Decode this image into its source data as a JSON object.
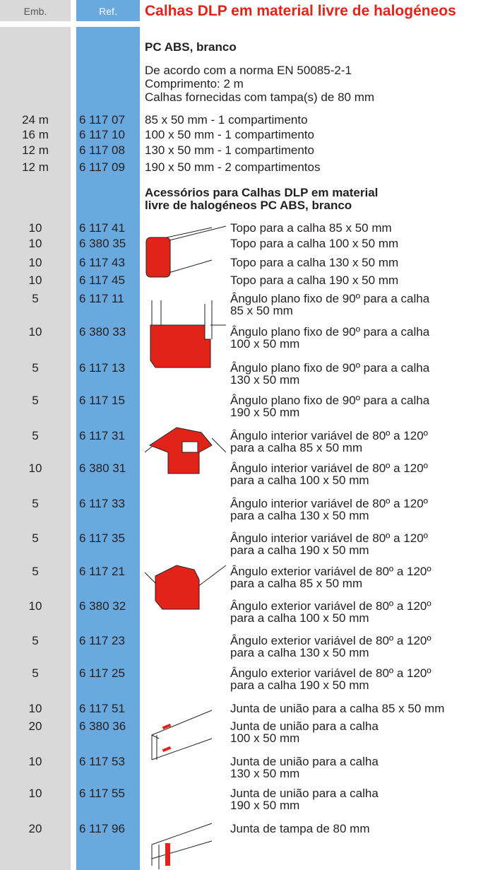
{
  "header": {
    "emb": "Emb.",
    "ref": "Ref.",
    "title": "Calhas DLP em material livre de halogéneos"
  },
  "section": {
    "title": "PC ABS, branco",
    "notes": [
      "De acordo com a norma EN 50085-2-1",
      "Comprimento: 2 m",
      "Calhas fornecidas com tampa(s) de 80 mm"
    ]
  },
  "products": [
    {
      "emb": "24 m",
      "ref": "6 117 07",
      "desc": "85 x 50 mm - 1 compartimento"
    },
    {
      "emb": "16 m",
      "ref": "6 117 10",
      "desc": "100 x 50 mm - 1 compartimento"
    },
    {
      "emb": "12 m",
      "ref": "6 117 08",
      "desc": "130 x 50 mm - 1 compartimento"
    },
    {
      "emb": "12 m",
      "ref": "6 117 09",
      "desc": "190 x 50 mm - 2 compartimentos"
    }
  ],
  "accessories": {
    "title": [
      "Acessórios para Calhas DLP em material",
      "livre de halogéneos PC ABS, branco"
    ],
    "items": [
      {
        "emb": "10",
        "ref": "6 117 41",
        "desc": [
          "Topo para a calha 85 x 50 mm"
        ]
      },
      {
        "emb": "10",
        "ref": "6 380 35",
        "desc": [
          "Topo para a calha 100 x 50 mm"
        ]
      },
      {
        "emb": "10",
        "ref": "6 117 43",
        "desc": [
          "Topo para a calha 130 x 50 mm"
        ]
      },
      {
        "emb": "10",
        "ref": "6 117 45",
        "desc": [
          "Topo para a calha  190 x 50 mm"
        ]
      },
      {
        "emb": "5",
        "ref": "6 117 11",
        "desc": [
          "Ângulo plano fixo de 90º para a calha",
          "85 x 50 mm"
        ]
      },
      {
        "emb": "10",
        "ref": "6 380 33",
        "desc": [
          "Ângulo plano fixo de 90º para a calha",
          "100 x 50 mm"
        ]
      },
      {
        "emb": "5",
        "ref": "6 117 13",
        "desc": [
          "Ângulo plano fixo de 90º para a calha",
          "130 x 50 mm"
        ]
      },
      {
        "emb": "5",
        "ref": "6 117 15",
        "desc": [
          "Ângulo plano fixo de 90º para a calha",
          "190 x 50 mm"
        ]
      },
      {
        "emb": "5",
        "ref": "6 117 31",
        "desc": [
          "Ângulo interior variável de 80º a 120º",
          "para a calha 85 x 50 mm"
        ]
      },
      {
        "emb": "10",
        "ref": "6 380 31",
        "desc": [
          "Ângulo interior variável de 80º a 120º",
          "para a calha 100 x 50 mm"
        ]
      },
      {
        "emb": "5",
        "ref": "6 117 33",
        "desc": [
          "Ângulo interior variável de 80º a 120º",
          "para a calha  130 x 50 mm"
        ]
      },
      {
        "emb": "5",
        "ref": "6 117 35",
        "desc": [
          "Ângulo interior variável de 80º a 120º",
          "para a calha 190 x 50 mm"
        ]
      },
      {
        "emb": "5",
        "ref": "6 117 21",
        "desc": [
          "Ângulo exterior variável de 80º a 120º",
          "para a calha  85 x 50 mm"
        ]
      },
      {
        "emb": "10",
        "ref": "6 380 32",
        "desc": [
          "Ângulo exterior variável de 80º a 120º",
          "para a calha 100 x 50 mm"
        ]
      },
      {
        "emb": "5",
        "ref": "6 117 23",
        "desc": [
          "Ângulo exterior variável de 80º a 120º",
          "para a calha 130 x 50 mm"
        ]
      },
      {
        "emb": "5",
        "ref": "6 117 25",
        "desc": [
          "Ângulo exterior variável de 80º a 120º",
          "para a calha 190 x 50 mm"
        ]
      },
      {
        "emb": "10",
        "ref": "6 117 51",
        "desc": [
          "Junta de união para a calha 85 x 50 mm"
        ]
      },
      {
        "emb": "20",
        "ref": "6 380 36",
        "desc": [
          "Junta de união para a calha",
          "100 x 50 mm"
        ]
      },
      {
        "emb": "10",
        "ref": "6 117 53",
        "desc": [
          "Junta de união para a calha",
          "130 x 50 mm"
        ]
      },
      {
        "emb": "10",
        "ref": "6 117 55",
        "desc": [
          "Junta de união para a calha",
          "190 x 50 mm"
        ]
      },
      {
        "emb": "20",
        "ref": "6 117 96",
        "desc": [
          "Junta de tampa de 80 mm"
        ]
      }
    ]
  }
}
